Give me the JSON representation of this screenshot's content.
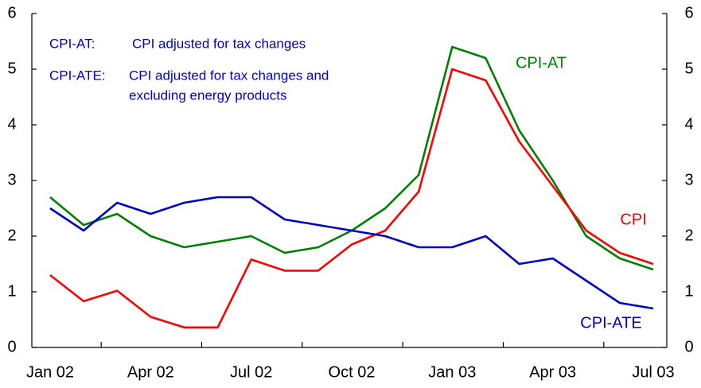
{
  "chart_data": {
    "type": "line",
    "categories": [
      "Jan 02",
      null,
      null,
      "Apr 02",
      null,
      null,
      "Jul 02",
      null,
      null,
      "Oct 02",
      null,
      null,
      "Jan 03",
      null,
      null,
      "Apr 03",
      null,
      null,
      "Jul 03"
    ],
    "series": [
      {
        "name": "CPI-AT",
        "color": "#008000",
        "values": [
          2.7,
          2.2,
          2.4,
          2.0,
          1.8,
          1.9,
          2.0,
          1.7,
          1.8,
          2.1,
          2.5,
          3.1,
          5.4,
          5.2,
          3.9,
          3.0,
          2.0,
          1.6,
          1.4
        ]
      },
      {
        "name": "CPI",
        "color": "#ff0000",
        "values": [
          1.3,
          0.83,
          1.02,
          0.55,
          0.36,
          0.36,
          1.58,
          1.38,
          1.38,
          1.85,
          2.1,
          2.8,
          5.0,
          4.8,
          3.7,
          2.9,
          2.1,
          1.7,
          1.5
        ]
      },
      {
        "name": "CPI-ATE",
        "color": "#0000cc",
        "values": [
          2.5,
          2.1,
          2.6,
          2.4,
          2.6,
          2.7,
          2.7,
          2.3,
          2.2,
          2.1,
          2.0,
          1.8,
          1.8,
          2.0,
          1.5,
          1.6,
          1.2,
          0.8,
          0.7
        ]
      }
    ],
    "ylim": [
      0,
      6
    ],
    "yticks": [
      0,
      1,
      2,
      3,
      4,
      5,
      6
    ],
    "y2lim": [
      0,
      6
    ],
    "y2ticks": [
      0,
      1,
      2,
      3,
      4,
      5,
      6
    ],
    "annotations": [
      {
        "label": "CPI-AT:",
        "text": [
          "CPI adjusted for tax changes"
        ]
      },
      {
        "label": "CPI-ATE:",
        "text": [
          "CPI adjusted for tax changes and",
          "excluding energy products"
        ]
      }
    ]
  }
}
